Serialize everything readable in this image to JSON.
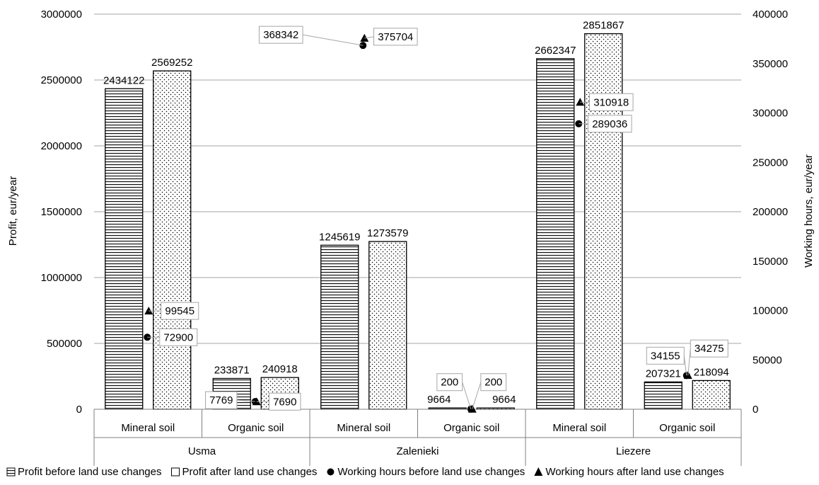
{
  "chart_data": {
    "type": "bar",
    "title": "",
    "ylabel": "Profit, eur/year",
    "y2label": "Working hours, eur/year",
    "ylim": [
      0,
      3000000
    ],
    "y2lim": [
      0,
      400000
    ],
    "yticks": [
      "0",
      "500000",
      "1000000",
      "1500000",
      "2000000",
      "2500000",
      "3000000"
    ],
    "y2ticks": [
      "0",
      "50000",
      "100000",
      "150000",
      "200000",
      "250000",
      "300000",
      "350000",
      "400000"
    ],
    "groups": [
      "Usma",
      "Zalenieki",
      "Liezere"
    ],
    "categories": [
      "Mineral soil",
      "Organic soil",
      "Mineral soil",
      "Organic soil",
      "Mineral soil",
      "Organic soil"
    ],
    "grid": true,
    "legend_position": "bottom",
    "series": [
      {
        "name": "Profit before land use changes",
        "kind": "bar",
        "axis": "left",
        "pattern": "horizontal-lines",
        "values": [
          2434122,
          233871,
          1245619,
          9664,
          2662347,
          207321
        ],
        "labels": [
          "2434122",
          "233871",
          "1245619",
          "9664",
          "2662347",
          "207321"
        ]
      },
      {
        "name": "Profit after land use changes",
        "kind": "bar",
        "axis": "left",
        "pattern": "dots",
        "values": [
          2569252,
          240918,
          1273579,
          9664,
          2851867,
          218094
        ],
        "labels": [
          "2569252",
          "240918",
          "1273579",
          "9664",
          "2851867",
          "218094"
        ]
      },
      {
        "name": "Working hours before land use changes",
        "kind": "marker",
        "marker": "circle",
        "axis": "right",
        "values": [
          72900,
          7769,
          368342,
          200,
          289036,
          34155
        ],
        "labels": [
          "72900",
          "7769",
          "368342",
          "200",
          "289036",
          "34155"
        ]
      },
      {
        "name": "Working hours after land use changes",
        "kind": "marker",
        "marker": "triangle",
        "axis": "right",
        "values": [
          99545,
          7690,
          375704,
          200,
          310918,
          34275
        ],
        "labels": [
          "99545",
          "7690",
          "375704",
          "200",
          "310918",
          "34275"
        ]
      }
    ],
    "legend": [
      {
        "label": "Profit before land use changes",
        "symbol": "hatched-square"
      },
      {
        "label": "Profit after land use changes",
        "symbol": "dotted-square"
      },
      {
        "label": "Working hours before land use changes",
        "symbol": "circle"
      },
      {
        "label": "Working hours after land use changes",
        "symbol": "triangle"
      }
    ]
  }
}
